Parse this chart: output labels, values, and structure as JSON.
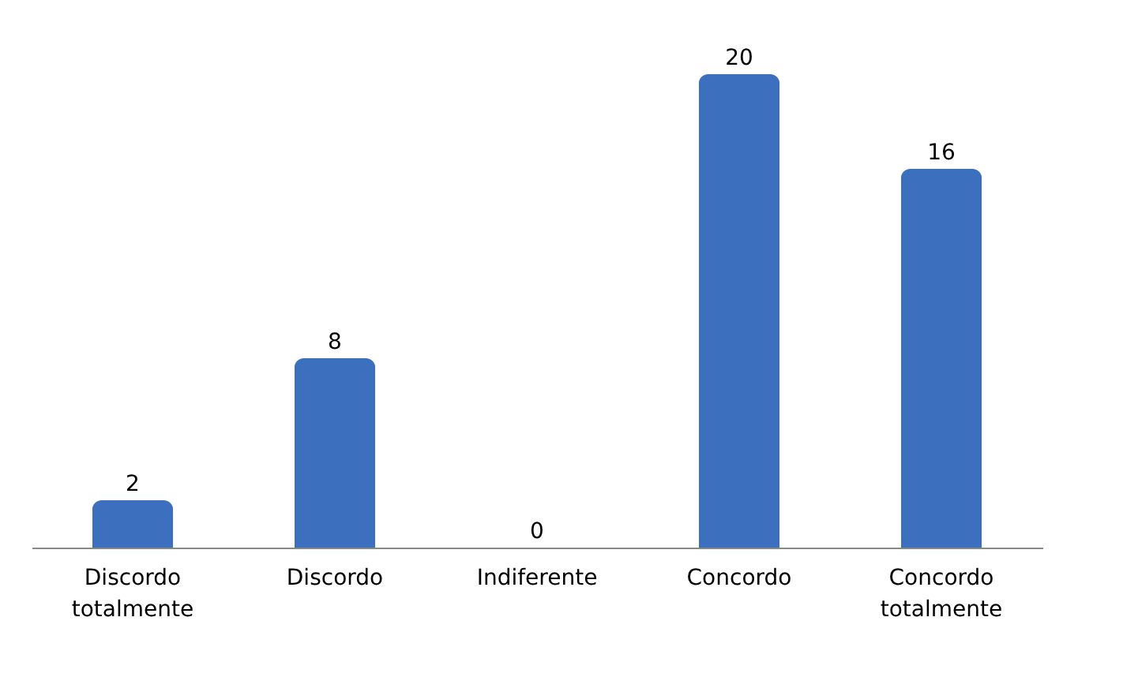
{
  "chart_data": {
    "type": "bar",
    "categories": [
      "Discordo totalmente",
      "Discordo",
      "Indiferente",
      "Concordo",
      "Concordo totalmente"
    ],
    "values": [
      2,
      8,
      0,
      20,
      16
    ],
    "color": "#3d6fbf",
    "data_labels": true
  }
}
